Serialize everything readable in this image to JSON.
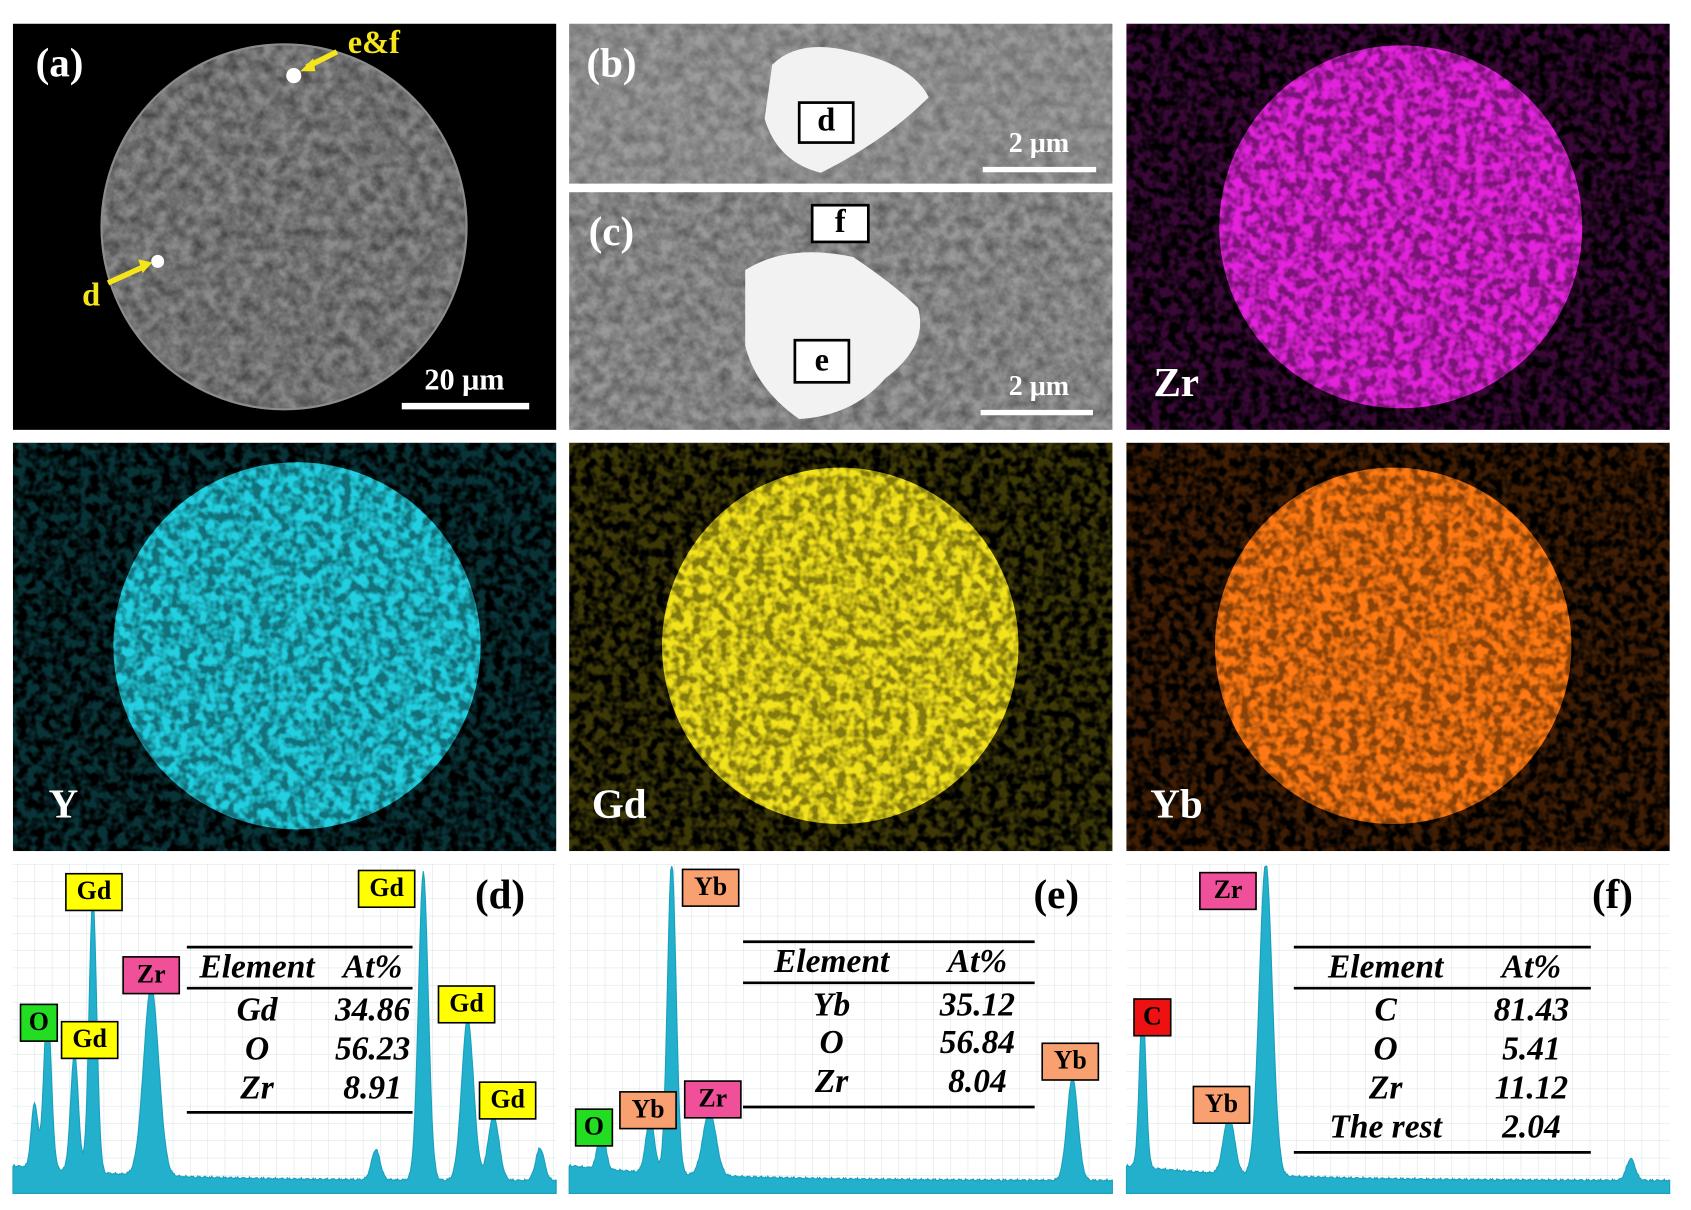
{
  "panels": {
    "a": {
      "label": "(a)",
      "arrow_labels": [
        "e&f",
        "d"
      ],
      "scale_bar": "20 μm"
    },
    "b": {
      "label": "(b)",
      "box": "d",
      "scale_bar": "2 μm"
    },
    "c": {
      "label": "(c)",
      "boxes": [
        "f",
        "e"
      ],
      "scale_bar": "2 μm"
    }
  },
  "maps": [
    {
      "element": "Zr",
      "color": "#e324dc"
    },
    {
      "element": "Y",
      "color": "#22cfe0"
    },
    {
      "element": "Gd",
      "color": "#f2e21c"
    },
    {
      "element": "Yb",
      "color": "#ff7a12"
    }
  ],
  "spectra": [
    {
      "label": "(d)",
      "peak_labels": [
        {
          "text": "Gd",
          "color": "#ffff00"
        },
        {
          "text": "Gd",
          "color": "#ffff00"
        },
        {
          "text": "Zr",
          "color": "#f0509a"
        },
        {
          "text": "O",
          "color": "#22dd22"
        },
        {
          "text": "Gd",
          "color": "#ffff00"
        },
        {
          "text": "Gd",
          "color": "#ffff00"
        },
        {
          "text": "Gd",
          "color": "#ffff00"
        }
      ],
      "table": {
        "header": [
          "Element",
          "At%"
        ],
        "rows": [
          [
            "Gd",
            34.86
          ],
          [
            "O",
            56.23
          ],
          [
            "Zr",
            8.91
          ]
        ]
      }
    },
    {
      "label": "(e)",
      "peak_labels": [
        {
          "text": "Yb",
          "color": "#f9a070"
        },
        {
          "text": "Yb",
          "color": "#f9a070"
        },
        {
          "text": "Yb",
          "color": "#f9a070"
        },
        {
          "text": "Zr",
          "color": "#f0509a"
        },
        {
          "text": "O",
          "color": "#22dd22"
        }
      ],
      "table": {
        "header": [
          "Element",
          "At%"
        ],
        "rows": [
          [
            "Yb",
            35.12
          ],
          [
            "O",
            56.84
          ],
          [
            "Zr",
            8.04
          ]
        ]
      }
    },
    {
      "label": "(f)",
      "peak_labels": [
        {
          "text": "Zr",
          "color": "#f0509a"
        },
        {
          "text": "C",
          "color": "#ee1111"
        },
        {
          "text": "Yb",
          "color": "#f9a070"
        }
      ],
      "table": {
        "header": [
          "Element",
          "At%"
        ],
        "rows": [
          [
            "C",
            81.43
          ],
          [
            "O",
            5.41
          ],
          [
            "Zr",
            11.12
          ],
          [
            "The rest",
            2.04
          ]
        ]
      }
    }
  ]
}
